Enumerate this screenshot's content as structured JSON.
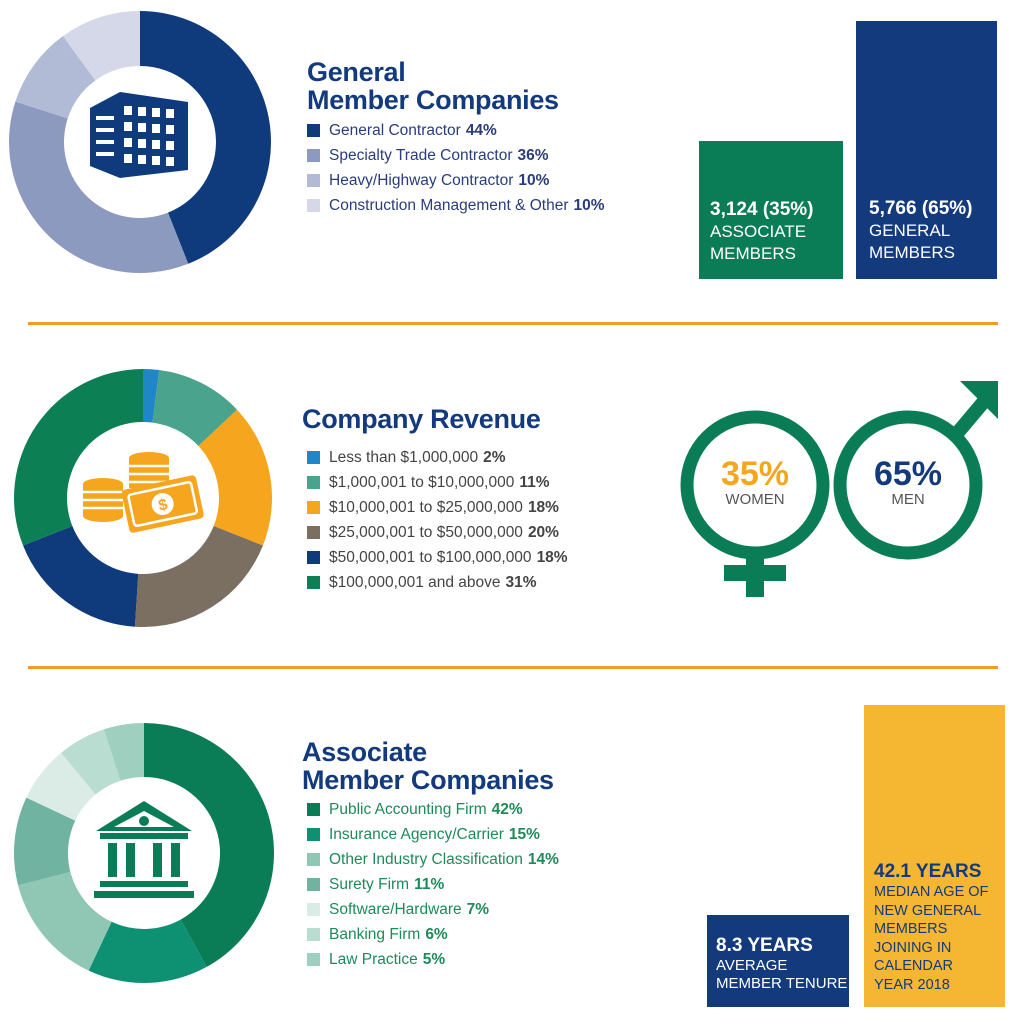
{
  "sections": {
    "general": {
      "title_line1": "General",
      "title_line2": "Member Companies",
      "legend": [
        {
          "label": "General Contractor",
          "value": "44%"
        },
        {
          "label": "Specialty Trade Contractor",
          "value": "36%"
        },
        {
          "label": "Heavy/Highway Contractor",
          "value": "10%"
        },
        {
          "label": "Construction Management & Other",
          "value": "10%"
        }
      ],
      "colors": [
        "#0f3b7c",
        "#8d9ac0",
        "#b2bbd6",
        "#d4d8e8"
      ]
    },
    "revenue": {
      "title": "Company Revenue",
      "legend": [
        {
          "label": "Less than $1,000,000",
          "value": "2%"
        },
        {
          "label": "$1,000,001 to $10,000,000",
          "value": "11%"
        },
        {
          "label": "$10,000,001 to $25,000,000",
          "value": "18%"
        },
        {
          "label": "$25,000,001 to $50,000,000",
          "value": "20%"
        },
        {
          "label": "$50,000,001 to $100,000,000",
          "value": "18%"
        },
        {
          "label": "$100,000,001 and above",
          "value": "31%"
        }
      ],
      "colors": [
        "#1f86c7",
        "#4aa38c",
        "#f6a61e",
        "#7b6f62",
        "#0f3b7c",
        "#0d7f55"
      ]
    },
    "associate": {
      "title_line1": "Associate",
      "title_line2": "Member Companies",
      "legend": [
        {
          "label": "Public Accounting Firm",
          "value": "42%"
        },
        {
          "label": "Insurance Agency/Carrier",
          "value": "15%"
        },
        {
          "label": "Other Industry Classification",
          "value": "14%"
        },
        {
          "label": "Surety Firm",
          "value": "11%"
        },
        {
          "label": "Software/Hardware",
          "value": "7%"
        },
        {
          "label": "Banking Firm",
          "value": "6%"
        },
        {
          "label": "Law Practice",
          "value": "5%"
        }
      ],
      "colors": [
        "#0a7d56",
        "#0e9073",
        "#8fc6b4",
        "#6fb3a0",
        "#dbece6",
        "#b9ddd1",
        "#9ecfbf"
      ]
    }
  },
  "membership": {
    "associate_count": "3,124 (35%)",
    "associate_label_1": "ASSOCIATE",
    "associate_label_2": "MEMBERS",
    "general_count": "5,766 (65%)",
    "general_label_1": "GENERAL",
    "general_label_2": "MEMBERS",
    "associate_color": "#0a7d56",
    "general_color": "#123a7c"
  },
  "gender": {
    "women_pct": "35%",
    "women_label": "WOMEN",
    "men_pct": "65%",
    "men_label": "MEN"
  },
  "tenure": {
    "value": "8.3 YEARS",
    "label_1": "AVERAGE",
    "label_2": "MEMBER TENURE"
  },
  "median_age": {
    "value": "42.1 YEARS",
    "lines": [
      "MEDIAN AGE OF",
      "NEW GENERAL",
      "MEMBERS",
      "JOINING IN",
      "CALENDAR",
      "YEAR 2018"
    ]
  },
  "chart_data": [
    {
      "type": "pie",
      "title": "General Member Companies",
      "categories": [
        "General Contractor",
        "Specialty Trade Contractor",
        "Heavy/Highway Contractor",
        "Construction Management & Other"
      ],
      "values": [
        44,
        36,
        10,
        10
      ]
    },
    {
      "type": "pie",
      "title": "Company Revenue",
      "categories": [
        "Less than $1,000,000",
        "$1,000,001 to $10,000,000",
        "$10,000,001 to $25,000,000",
        "$25,000,001 to $50,000,000",
        "$50,000,001 to $100,000,000",
        "$100,000,001 and above"
      ],
      "values": [
        2,
        11,
        18,
        20,
        18,
        31
      ]
    },
    {
      "type": "pie",
      "title": "Associate Member Companies",
      "categories": [
        "Public Accounting Firm",
        "Insurance Agency/Carrier",
        "Other Industry Classification",
        "Surety Firm",
        "Software/Hardware",
        "Banking Firm",
        "Law Practice"
      ],
      "values": [
        42,
        15,
        14,
        11,
        7,
        6,
        5
      ]
    },
    {
      "type": "bar",
      "categories": [
        "ASSOCIATE MEMBERS",
        "GENERAL MEMBERS"
      ],
      "values": [
        3124,
        5766
      ]
    },
    {
      "type": "bar",
      "categories": [
        "AVERAGE MEMBER TENURE",
        "MEDIAN AGE OF NEW GENERAL MEMBERS JOINING IN CALENDAR YEAR 2018"
      ],
      "values": [
        8.3,
        42.1
      ]
    }
  ]
}
